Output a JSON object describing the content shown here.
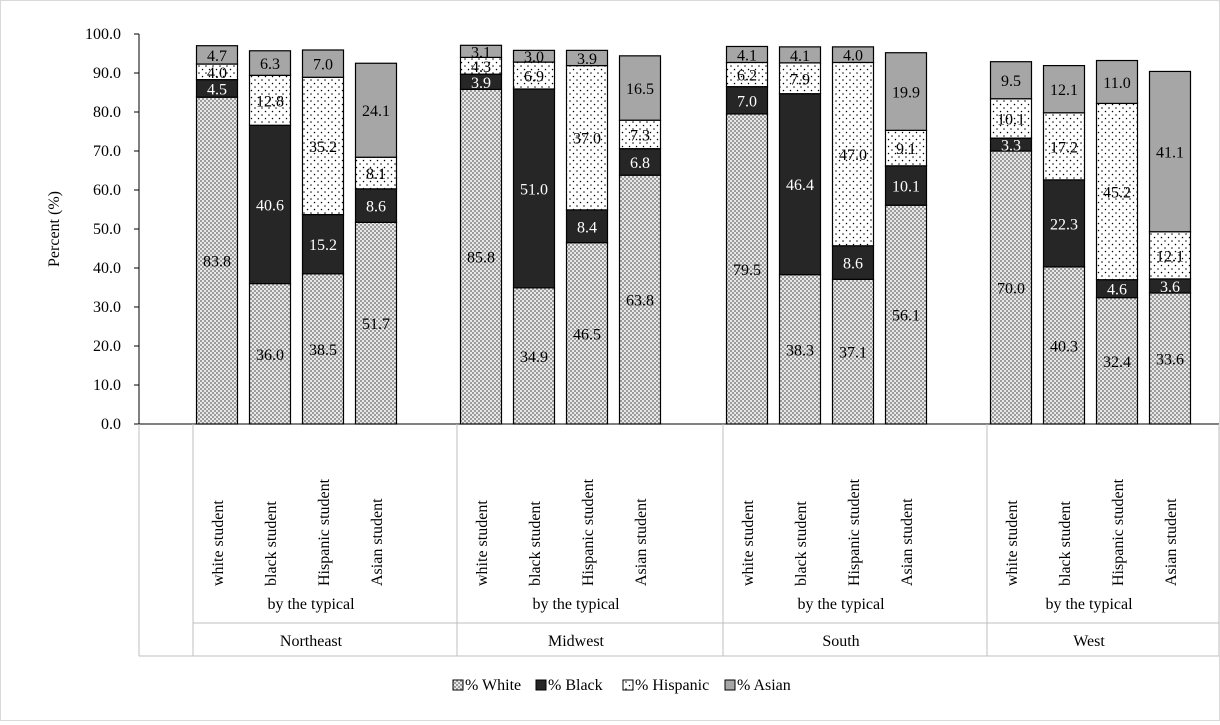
{
  "chart_data": {
    "type": "bar",
    "stacked": true,
    "ylabel": "Percent (%)",
    "ylim": [
      0,
      100
    ],
    "ytick_step": 10,
    "ytick_labels": [
      "0.0",
      "10.0",
      "20.0",
      "30.0",
      "40.0",
      "50.0",
      "60.0",
      "70.0",
      "80.0",
      "90.0",
      "100.0"
    ],
    "grid": false,
    "legend_position": "bottom",
    "groups": [
      {
        "region": "Northeast",
        "subtitle": "by the typical",
        "categories": [
          "white student",
          "black student",
          "Hispanic student",
          "Asian student"
        ],
        "series": [
          {
            "name": "% White",
            "values": [
              83.8,
              36.0,
              38.5,
              51.7
            ]
          },
          {
            "name": "% Black",
            "values": [
              4.5,
              40.6,
              15.2,
              8.6
            ]
          },
          {
            "name": "% Hispanic",
            "values": [
              4.0,
              12.8,
              35.2,
              8.1
            ]
          },
          {
            "name": "% Asian",
            "values": [
              4.7,
              6.3,
              7.0,
              24.1
            ]
          }
        ]
      },
      {
        "region": "Midwest",
        "subtitle": "by the typical",
        "categories": [
          "white student",
          "black student",
          "Hispanic student",
          "Asian student"
        ],
        "series": [
          {
            "name": "% White",
            "values": [
              85.8,
              34.9,
              46.5,
              63.8
            ]
          },
          {
            "name": "% Black",
            "values": [
              3.9,
              51.0,
              8.4,
              6.8
            ]
          },
          {
            "name": "% Hispanic",
            "values": [
              4.3,
              6.9,
              37.0,
              7.3
            ]
          },
          {
            "name": "% Asian",
            "values": [
              3.1,
              3.0,
              3.9,
              16.5
            ]
          }
        ]
      },
      {
        "region": "South",
        "subtitle": "by the typical",
        "categories": [
          "white student",
          "black student",
          "Hispanic student",
          "Asian student"
        ],
        "series": [
          {
            "name": "% White",
            "values": [
              79.5,
              38.3,
              37.1,
              56.1
            ]
          },
          {
            "name": "% Black",
            "values": [
              7.0,
              46.4,
              8.6,
              10.1
            ]
          },
          {
            "name": "% Hispanic",
            "values": [
              6.2,
              7.9,
              47.0,
              9.1
            ]
          },
          {
            "name": "% Asian",
            "values": [
              4.1,
              4.1,
              4.0,
              19.9
            ]
          }
        ]
      },
      {
        "region": "West",
        "subtitle": "by the typical",
        "categories": [
          "white student",
          "black student",
          "Hispanic student",
          "Asian student"
        ],
        "series": [
          {
            "name": "% White",
            "values": [
              70.0,
              40.3,
              32.4,
              33.6
            ]
          },
          {
            "name": "% Black",
            "values": [
              3.3,
              22.3,
              4.6,
              3.6
            ]
          },
          {
            "name": "% Hispanic",
            "values": [
              10.1,
              17.2,
              45.2,
              12.1
            ]
          },
          {
            "name": "% Asian",
            "values": [
              9.5,
              12.1,
              11.0,
              41.1
            ]
          }
        ]
      }
    ],
    "legend": [
      "% White",
      "% Black",
      "% Hispanic",
      "% Asian"
    ]
  },
  "colors": {
    "white_bg": "#ffffff",
    "white_pattern": "#7f7f7f",
    "black": "#262626",
    "hispanic_bg": "#ffffff",
    "hispanic_dots": "#000000",
    "asian": "#a6a6a6",
    "axis": "#000000",
    "divider": "#bfbfbf"
  }
}
